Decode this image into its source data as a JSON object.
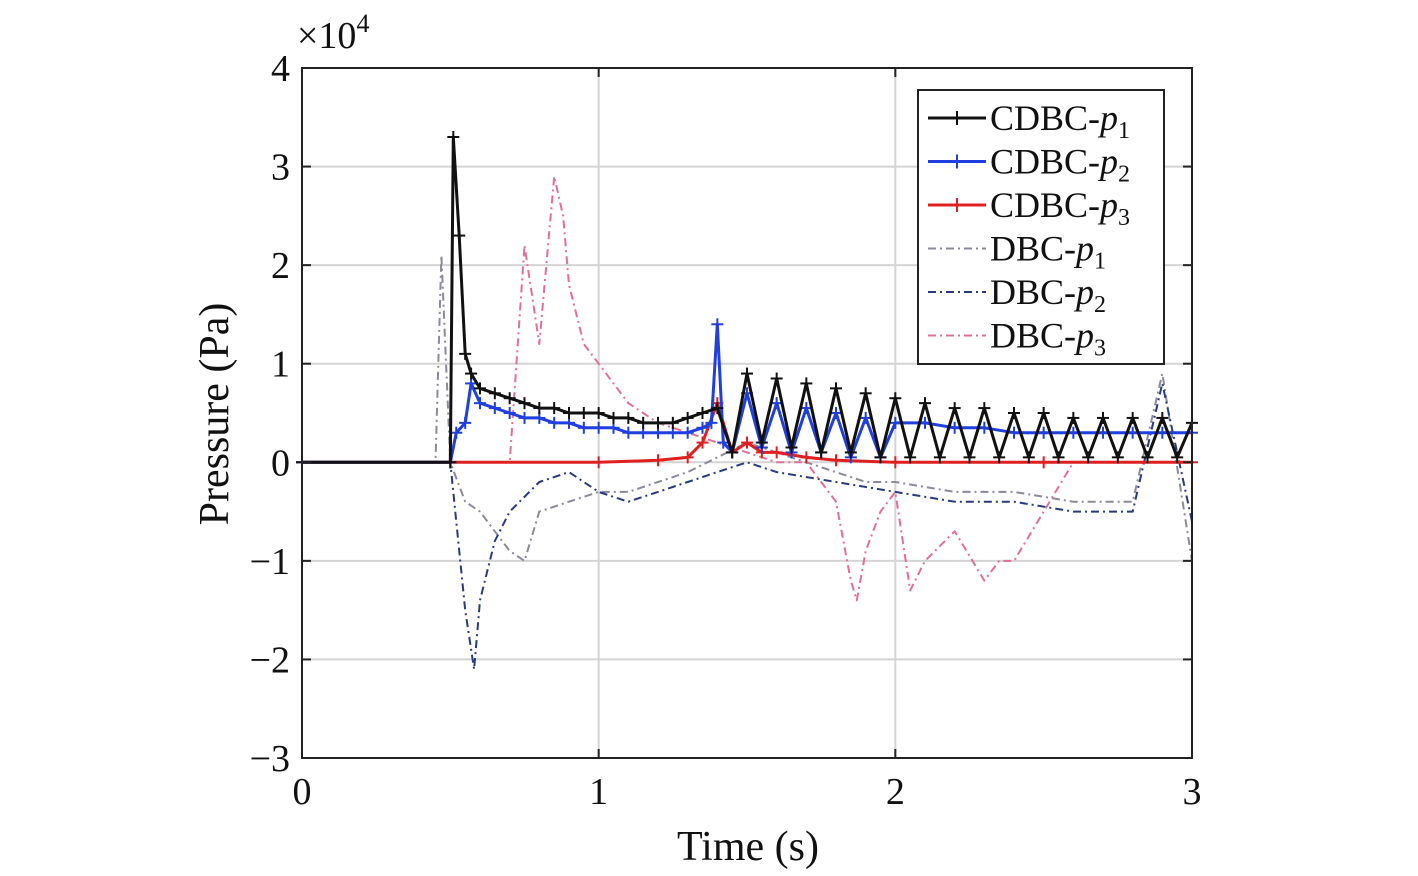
{
  "chart_data": {
    "type": "line",
    "xlabel": "Time (s)",
    "ylabel": "Pressure (Pa)",
    "y_exponent_label": "×10",
    "y_exponent_power": "4",
    "xlim": [
      0,
      3
    ],
    "ylim": [
      -3,
      4
    ],
    "xticks": [
      0,
      1,
      2,
      3
    ],
    "yticks": [
      -3,
      -2,
      -1,
      0,
      1,
      2,
      3,
      4
    ],
    "xtick_labels": [
      "0",
      "1",
      "2",
      "3"
    ],
    "ytick_labels": [
      "−3",
      "−2",
      "−1",
      "0",
      "1",
      "2",
      "3",
      "4"
    ],
    "grid": true,
    "legend_position": "top-right",
    "series": [
      {
        "name": "CDBC-p1",
        "legend_prefix": "CDBC-",
        "legend_var": "p",
        "legend_sub": "1",
        "color": "#111111",
        "style": "solid-plus",
        "x": [
          0,
          0.5,
          0.51,
          0.53,
          0.55,
          0.57,
          0.6,
          0.65,
          0.7,
          0.75,
          0.8,
          0.85,
          0.9,
          0.95,
          1.0,
          1.05,
          1.1,
          1.15,
          1.2,
          1.25,
          1.3,
          1.35,
          1.4,
          1.45,
          1.5,
          1.55,
          1.6,
          1.65,
          1.7,
          1.75,
          1.8,
          1.85,
          1.9,
          1.95,
          2.0,
          2.05,
          2.1,
          2.15,
          2.2,
          2.25,
          2.3,
          2.35,
          2.4,
          2.45,
          2.5,
          2.55,
          2.6,
          2.65,
          2.7,
          2.75,
          2.8,
          2.85,
          2.9,
          2.95,
          3.0
        ],
        "y": [
          0,
          0,
          3.3,
          2.3,
          1.1,
          0.9,
          0.75,
          0.7,
          0.65,
          0.6,
          0.55,
          0.55,
          0.5,
          0.5,
          0.5,
          0.45,
          0.45,
          0.4,
          0.4,
          0.4,
          0.45,
          0.5,
          0.55,
          0.1,
          0.9,
          0.2,
          0.85,
          0.15,
          0.8,
          0.1,
          0.75,
          0.1,
          0.7,
          0.05,
          0.65,
          0.05,
          0.6,
          0.05,
          0.55,
          0.05,
          0.55,
          0.05,
          0.5,
          0.05,
          0.5,
          0.05,
          0.45,
          0.05,
          0.45,
          0.05,
          0.45,
          0.05,
          0.45,
          0.05,
          0.4
        ]
      },
      {
        "name": "CDBC-p2",
        "legend_prefix": "CDBC-",
        "legend_var": "p",
        "legend_sub": "2",
        "color": "#1f3fe0",
        "style": "solid-plus",
        "x": [
          0,
          0.5,
          0.52,
          0.55,
          0.57,
          0.6,
          0.65,
          0.7,
          0.75,
          0.8,
          0.85,
          0.9,
          0.95,
          1.0,
          1.05,
          1.1,
          1.15,
          1.2,
          1.25,
          1.3,
          1.35,
          1.38,
          1.4,
          1.42,
          1.45,
          1.5,
          1.55,
          1.6,
          1.65,
          1.7,
          1.75,
          1.8,
          1.85,
          1.9,
          1.95,
          2.0,
          2.1,
          2.2,
          2.3,
          2.4,
          2.5,
          2.6,
          2.7,
          2.8,
          2.9,
          3.0
        ],
        "y": [
          0,
          0,
          0.3,
          0.4,
          0.8,
          0.6,
          0.55,
          0.5,
          0.45,
          0.45,
          0.4,
          0.4,
          0.35,
          0.35,
          0.35,
          0.3,
          0.3,
          0.3,
          0.3,
          0.3,
          0.35,
          0.4,
          1.4,
          0.2,
          0.1,
          0.7,
          0.15,
          0.6,
          0.1,
          0.55,
          0.1,
          0.5,
          0.05,
          0.45,
          0.05,
          0.4,
          0.4,
          0.35,
          0.35,
          0.3,
          0.3,
          0.3,
          0.3,
          0.3,
          0.3,
          0.3
        ]
      },
      {
        "name": "CDBC-p3",
        "legend_prefix": "CDBC-",
        "legend_var": "p",
        "legend_sub": "3",
        "color": "#e02020",
        "style": "solid-plus",
        "x": [
          0,
          0.5,
          1.0,
          1.2,
          1.3,
          1.35,
          1.4,
          1.45,
          1.5,
          1.55,
          1.6,
          1.7,
          1.8,
          2.0,
          2.5,
          3.0
        ],
        "y": [
          0,
          0,
          0,
          0.02,
          0.05,
          0.2,
          0.6,
          0.1,
          0.2,
          0.1,
          0.1,
          0.05,
          0.02,
          0,
          0,
          0
        ]
      },
      {
        "name": "DBC-p1",
        "legend_prefix": "DBC-",
        "legend_var": "p",
        "legend_sub": "1",
        "color": "#8a8a9a",
        "style": "dashdot",
        "x": [
          0,
          0.45,
          0.47,
          0.5,
          0.55,
          0.6,
          0.65,
          0.7,
          0.75,
          0.8,
          0.9,
          1.0,
          1.1,
          1.2,
          1.3,
          1.4,
          1.5,
          1.6,
          1.7,
          1.8,
          1.9,
          2.0,
          2.2,
          2.4,
          2.6,
          2.8,
          2.9,
          3.0
        ],
        "y": [
          0,
          0,
          2.1,
          0.0,
          -0.4,
          -0.5,
          -0.7,
          -0.9,
          -1.0,
          -0.5,
          -0.4,
          -0.3,
          -0.3,
          -0.2,
          -0.1,
          0.05,
          0.2,
          0.1,
          0.0,
          -0.1,
          -0.2,
          -0.2,
          -0.3,
          -0.3,
          -0.4,
          -0.4,
          0.9,
          -1.0
        ]
      },
      {
        "name": "DBC-p2",
        "legend_prefix": "DBC-",
        "legend_var": "p",
        "legend_sub": "2",
        "color": "#2a3a7a",
        "style": "dashdot",
        "x": [
          0,
          0.5,
          0.55,
          0.58,
          0.6,
          0.65,
          0.7,
          0.8,
          0.9,
          1.0,
          1.1,
          1.2,
          1.3,
          1.4,
          1.5,
          1.6,
          1.8,
          2.0,
          2.2,
          2.4,
          2.6,
          2.8,
          2.9,
          3.0
        ],
        "y": [
          0,
          0,
          -1.5,
          -2.1,
          -1.4,
          -0.8,
          -0.5,
          -0.2,
          -0.1,
          -0.3,
          -0.4,
          -0.3,
          -0.2,
          -0.1,
          0.0,
          -0.1,
          -0.2,
          -0.3,
          -0.4,
          -0.4,
          -0.5,
          -0.5,
          0.8,
          -0.6
        ]
      },
      {
        "name": "DBC-p3",
        "legend_prefix": "DBC-",
        "legend_var": "p",
        "legend_sub": "3",
        "color": "#e0709a",
        "style": "dashdot",
        "x": [
          0,
          0.7,
          0.75,
          0.8,
          0.85,
          0.88,
          0.9,
          0.95,
          1.0,
          1.05,
          1.1,
          1.2,
          1.3,
          1.4,
          1.5,
          1.6,
          1.7,
          1.8,
          1.85,
          1.87,
          1.9,
          1.95,
          2.0,
          2.05,
          2.1,
          2.2,
          2.3,
          2.35,
          2.4,
          2.5,
          2.6,
          2.8,
          3.0
        ],
        "y": [
          0,
          0,
          2.2,
          1.2,
          2.9,
          2.5,
          1.8,
          1.2,
          1.0,
          0.8,
          0.6,
          0.4,
          0.3,
          0.2,
          0.1,
          0.0,
          0.0,
          -0.4,
          -1.2,
          -1.4,
          -0.9,
          -0.5,
          -0.3,
          -1.3,
          -1.0,
          -0.7,
          -1.2,
          -1.0,
          -1.0,
          -0.5,
          0.0,
          0.0,
          0.0
        ]
      }
    ]
  }
}
